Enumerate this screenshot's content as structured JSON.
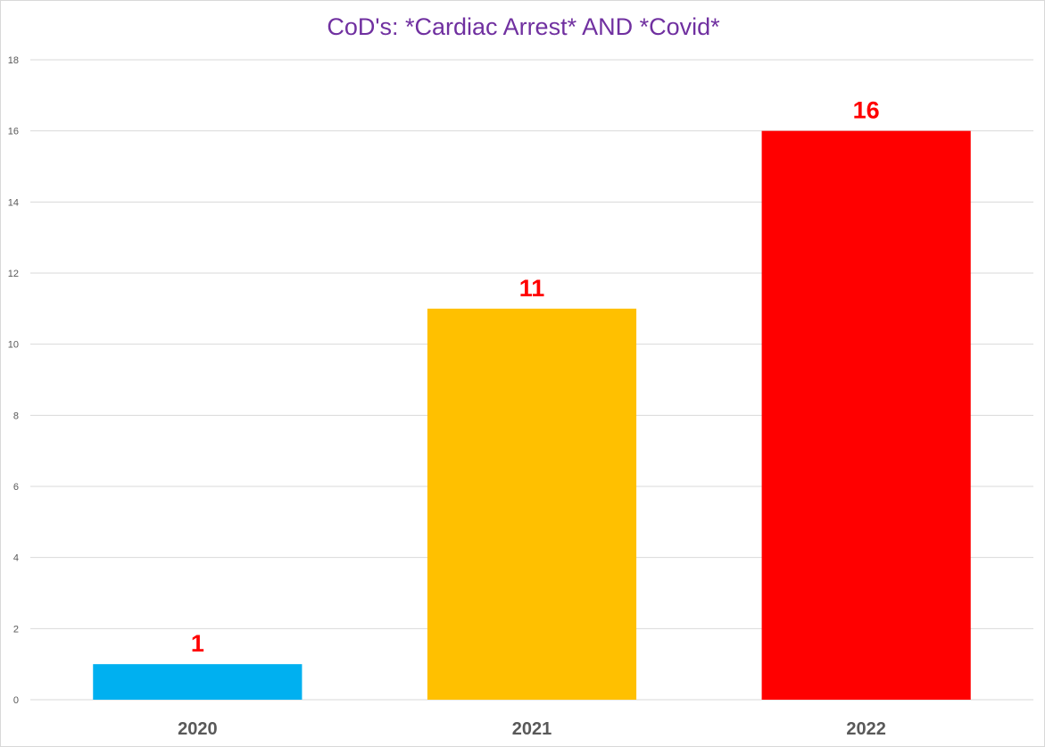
{
  "chart_data": {
    "type": "bar",
    "title": "CoD's: *Cardiac Arrest* AND *Covid*",
    "categories": [
      "2020",
      "2021",
      "2022"
    ],
    "values": [
      1,
      11,
      16
    ],
    "data_labels": [
      "1",
      "11",
      "16"
    ],
    "bar_colors": [
      "#00b0f0",
      "#ffc000",
      "#ff0000"
    ],
    "data_label_color": "#ff0000",
    "title_color": "#7030a0",
    "ylim": [
      0,
      18
    ],
    "yticks": [
      0,
      2,
      4,
      6,
      8,
      10,
      12,
      14,
      16,
      18
    ],
    "ytick_labels": [
      "0",
      "2",
      "4",
      "6",
      "8",
      "10",
      "12",
      "14",
      "16",
      "18"
    ],
    "grid": true,
    "legend": "none",
    "xlabel": "",
    "ylabel": ""
  }
}
